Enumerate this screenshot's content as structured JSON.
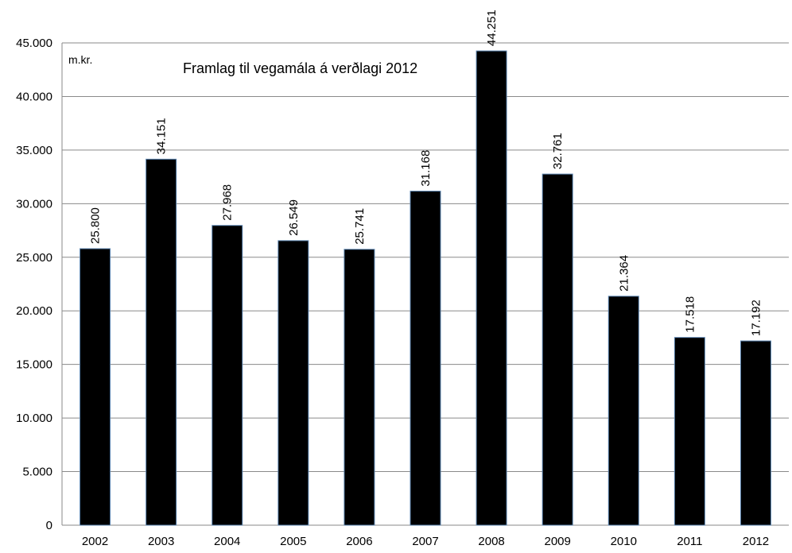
{
  "chart_data": {
    "type": "bar",
    "title": "Framlag til vegamála á verðlagi 2012",
    "unit_label": "m.kr.",
    "xlabel": "",
    "ylabel": "",
    "categories": [
      "2002",
      "2003",
      "2004",
      "2005",
      "2006",
      "2007",
      "2008",
      "2009",
      "2010",
      "2011",
      "2012"
    ],
    "values": [
      25800,
      34151,
      27968,
      26549,
      25741,
      31168,
      44251,
      32761,
      21364,
      17518,
      17192
    ],
    "value_labels": [
      "25.800",
      "34.151",
      "27.968",
      "26.549",
      "25.741",
      "31.168",
      "44.251",
      "32.761",
      "21.364",
      "17.518",
      "17.192"
    ],
    "ylim": [
      0,
      45000
    ],
    "y_ticks": [
      0,
      5000,
      10000,
      15000,
      20000,
      25000,
      30000,
      35000,
      40000,
      45000
    ],
    "y_tick_labels": [
      "0",
      "5.000",
      "10.000",
      "15.000",
      "20.000",
      "25.000",
      "30.000",
      "35.000",
      "40.000",
      "45.000"
    ],
    "grid": true,
    "bar_color": "#000000",
    "bar_outline_color": "#5a84b0",
    "grid_color": "#8a8a8a"
  }
}
